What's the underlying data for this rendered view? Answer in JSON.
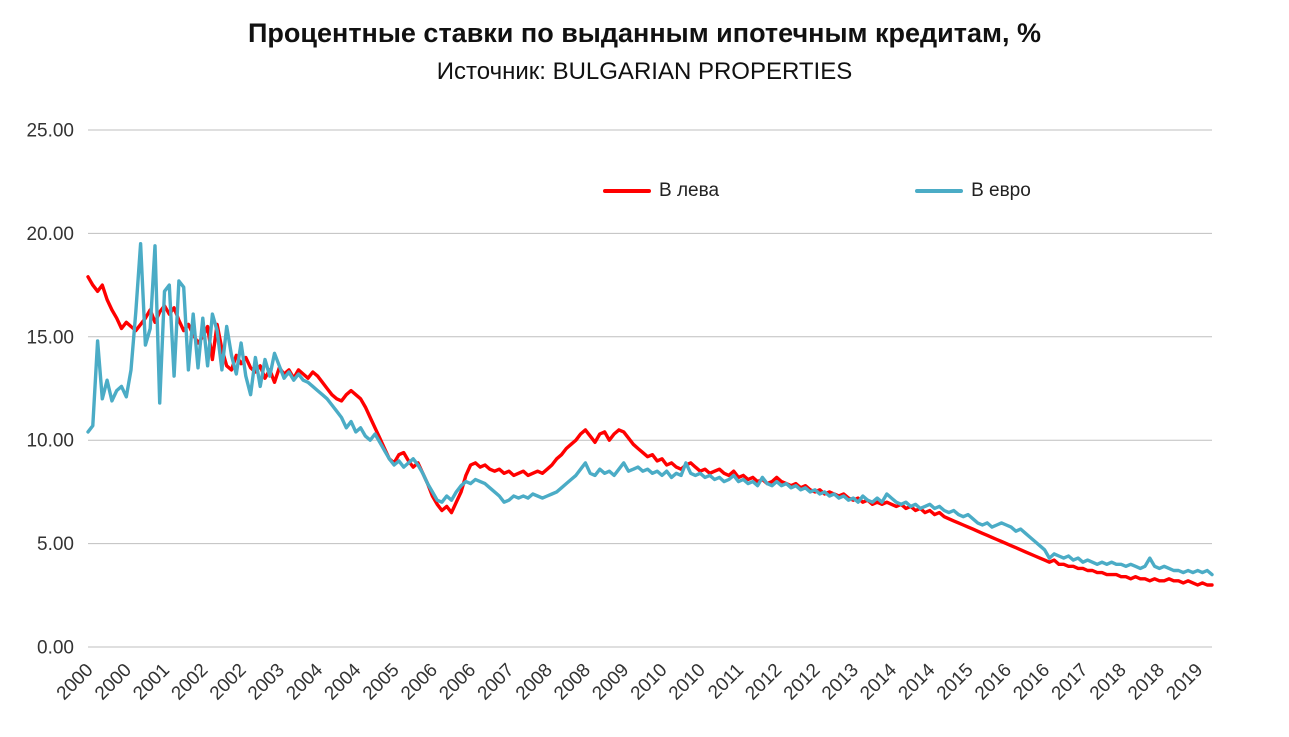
{
  "title": "Процентные ставки по выданным ипотечным кредитам, %",
  "subtitle": "Источник: BULGARIAN PROPERTIES",
  "legend": [
    {
      "label": "В лева",
      "color": "#FF0000"
    },
    {
      "label": "В евро",
      "color": "#4BACC6"
    }
  ],
  "chart_data": {
    "type": "line",
    "title": "Процентные ставки по выданным ипотечным кредитам, %",
    "subtitle": "Источник: BULGARIAN PROPERTIES",
    "x_start": "2000-01",
    "x_frequency": "monthly",
    "x_tick_every": 8,
    "x_tick_labels": [
      "2000",
      "2000",
      "2001",
      "2002",
      "2002",
      "2003",
      "2004",
      "2004",
      "2005",
      "2006",
      "2006",
      "2007",
      "2008",
      "2008",
      "2009",
      "2010",
      "2010",
      "2011",
      "2012",
      "2012",
      "2013",
      "2014",
      "2014",
      "2015",
      "2016",
      "2016",
      "2017",
      "2018",
      "2018",
      "2019"
    ],
    "ylim": [
      0,
      25
    ],
    "y_ticks": [
      0,
      5,
      10,
      15,
      20,
      25
    ],
    "y_tick_labels": [
      "0.00",
      "5.00",
      "10.00",
      "15.00",
      "20.00",
      "25.00"
    ],
    "ylabel": "",
    "xlabel": "",
    "grid": true,
    "grid_color": "#BFBFBF",
    "text_color": "#333333",
    "legend_position": "top-center",
    "series": [
      {
        "id": "leva",
        "name": "В лева",
        "color": "#FF0000",
        "values": [
          17.9,
          17.5,
          17.2,
          17.5,
          16.8,
          16.3,
          15.9,
          15.4,
          15.7,
          15.5,
          15.3,
          15.6,
          15.9,
          16.3,
          15.7,
          16.2,
          16.5,
          16.1,
          16.4,
          15.8,
          15.3,
          15.6,
          15.1,
          14.7,
          15.0,
          15.5,
          13.9,
          15.6,
          14.4,
          13.6,
          13.4,
          14.1,
          13.7,
          14.0,
          13.5,
          13.3,
          13.6,
          13.0,
          13.4,
          12.8,
          13.5,
          13.2,
          13.4,
          13.0,
          13.4,
          13.2,
          13.0,
          13.3,
          13.1,
          12.8,
          12.5,
          12.2,
          12.0,
          11.9,
          12.2,
          12.4,
          12.2,
          12.0,
          11.6,
          11.1,
          10.6,
          10.1,
          9.6,
          9.1,
          8.9,
          9.3,
          9.4,
          9.0,
          8.7,
          8.9,
          8.4,
          7.9,
          7.3,
          6.9,
          6.6,
          6.8,
          6.5,
          7.0,
          7.5,
          8.3,
          8.8,
          8.9,
          8.7,
          8.8,
          8.6,
          8.5,
          8.6,
          8.4,
          8.5,
          8.3,
          8.4,
          8.5,
          8.3,
          8.4,
          8.5,
          8.4,
          8.6,
          8.8,
          9.1,
          9.3,
          9.6,
          9.8,
          10.0,
          10.3,
          10.5,
          10.2,
          9.9,
          10.3,
          10.4,
          10.0,
          10.3,
          10.5,
          10.4,
          10.1,
          9.8,
          9.6,
          9.4,
          9.2,
          9.3,
          9.0,
          9.1,
          8.8,
          8.9,
          8.7,
          8.6,
          8.8,
          8.9,
          8.7,
          8.5,
          8.6,
          8.4,
          8.5,
          8.6,
          8.4,
          8.3,
          8.5,
          8.2,
          8.3,
          8.1,
          8.2,
          8.0,
          8.1,
          7.9,
          8.0,
          8.2,
          8.0,
          7.9,
          7.8,
          7.9,
          7.7,
          7.8,
          7.6,
          7.5,
          7.6,
          7.4,
          7.5,
          7.4,
          7.3,
          7.4,
          7.2,
          7.1,
          7.2,
          7.0,
          7.1,
          6.9,
          7.0,
          6.9,
          7.0,
          6.9,
          6.8,
          6.9,
          6.7,
          6.8,
          6.6,
          6.7,
          6.5,
          6.6,
          6.4,
          6.5,
          6.3,
          6.2,
          6.1,
          6.0,
          5.9,
          5.8,
          5.7,
          5.6,
          5.5,
          5.4,
          5.3,
          5.2,
          5.1,
          5.0,
          4.9,
          4.8,
          4.7,
          4.6,
          4.5,
          4.4,
          4.3,
          4.2,
          4.1,
          4.2,
          4.0,
          4.0,
          3.9,
          3.9,
          3.8,
          3.8,
          3.7,
          3.7,
          3.6,
          3.6,
          3.5,
          3.5,
          3.5,
          3.4,
          3.4,
          3.3,
          3.4,
          3.3,
          3.3,
          3.2,
          3.3,
          3.2,
          3.2,
          3.3,
          3.2,
          3.2,
          3.1,
          3.2,
          3.1,
          3.0,
          3.1,
          3.0,
          3.0
        ]
      },
      {
        "id": "euro",
        "name": "В евро",
        "color": "#4BACC6",
        "values": [
          10.4,
          10.7,
          14.8,
          12.0,
          12.9,
          11.9,
          12.4,
          12.6,
          12.1,
          13.4,
          16.2,
          19.5,
          14.6,
          15.4,
          19.4,
          11.8,
          17.2,
          17.5,
          13.1,
          17.7,
          17.4,
          13.4,
          16.1,
          13.5,
          15.9,
          13.6,
          16.1,
          15.3,
          13.4,
          15.5,
          14.1,
          13.2,
          14.7,
          13.1,
          12.2,
          14.0,
          12.6,
          13.9,
          13.1,
          14.2,
          13.6,
          13.0,
          13.3,
          12.9,
          13.2,
          12.9,
          12.8,
          12.6,
          12.4,
          12.2,
          12.0,
          11.7,
          11.4,
          11.1,
          10.6,
          10.9,
          10.4,
          10.6,
          10.2,
          10.0,
          10.3,
          9.9,
          9.5,
          9.1,
          8.8,
          9.0,
          8.7,
          8.9,
          9.1,
          8.8,
          8.4,
          7.9,
          7.5,
          7.1,
          7.0,
          7.3,
          7.1,
          7.5,
          7.8,
          8.0,
          7.9,
          8.1,
          8.0,
          7.9,
          7.7,
          7.5,
          7.3,
          7.0,
          7.1,
          7.3,
          7.2,
          7.3,
          7.2,
          7.4,
          7.3,
          7.2,
          7.3,
          7.4,
          7.5,
          7.7,
          7.9,
          8.1,
          8.3,
          8.6,
          8.9,
          8.4,
          8.3,
          8.6,
          8.4,
          8.5,
          8.3,
          8.6,
          8.9,
          8.5,
          8.6,
          8.7,
          8.5,
          8.6,
          8.4,
          8.5,
          8.3,
          8.5,
          8.2,
          8.4,
          8.3,
          8.9,
          8.4,
          8.3,
          8.4,
          8.2,
          8.3,
          8.1,
          8.2,
          8.0,
          8.1,
          8.3,
          8.0,
          8.1,
          7.9,
          8.0,
          7.8,
          8.2,
          7.9,
          7.8,
          8.0,
          7.8,
          7.9,
          7.7,
          7.8,
          7.6,
          7.7,
          7.5,
          7.6,
          7.4,
          7.5,
          7.3,
          7.4,
          7.2,
          7.3,
          7.1,
          7.2,
          7.0,
          7.3,
          7.1,
          7.0,
          7.2,
          7.0,
          7.4,
          7.2,
          7.0,
          6.9,
          7.0,
          6.8,
          6.9,
          6.7,
          6.8,
          6.9,
          6.7,
          6.8,
          6.6,
          6.5,
          6.6,
          6.4,
          6.3,
          6.4,
          6.2,
          6.0,
          5.9,
          6.0,
          5.8,
          5.9,
          6.0,
          5.9,
          5.8,
          5.6,
          5.7,
          5.5,
          5.3,
          5.1,
          4.9,
          4.7,
          4.3,
          4.5,
          4.4,
          4.3,
          4.4,
          4.2,
          4.3,
          4.1,
          4.2,
          4.1,
          4.0,
          4.1,
          4.0,
          4.1,
          4.0,
          4.0,
          3.9,
          4.0,
          3.9,
          3.8,
          3.9,
          4.3,
          3.9,
          3.8,
          3.9,
          3.8,
          3.7,
          3.7,
          3.6,
          3.7,
          3.6,
          3.7,
          3.6,
          3.7,
          3.5
        ]
      }
    ]
  }
}
